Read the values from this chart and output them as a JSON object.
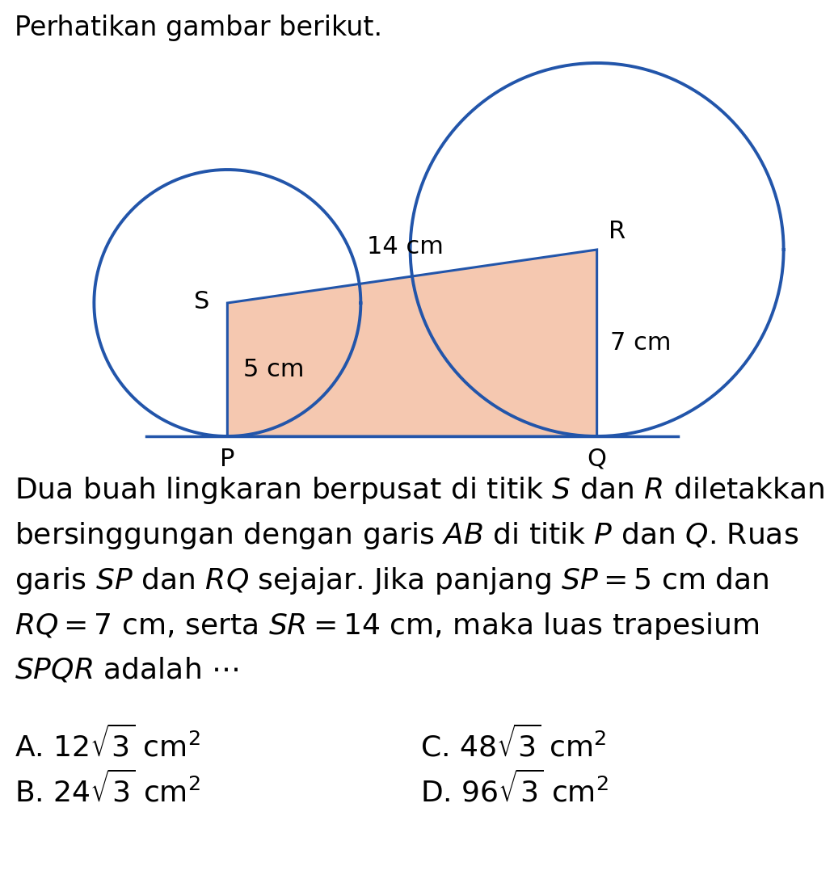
{
  "title": "Perhatikan gambar berikut.",
  "title_fontsize": 24,
  "background_color": "#ffffff",
  "circle_color": "#2255aa",
  "circle_linewidth": 2.8,
  "trapezoid_fill": "#f5c8b0",
  "trapezoid_edge_color": "#2255aa",
  "trapezoid_linewidth": 2.2,
  "line_AB_color": "#2255aa",
  "line_AB_linewidth": 2.5,
  "SP": 5,
  "RQ": 7,
  "SR": 14,
  "label_fontsize": 22,
  "text_fontsize": 26,
  "answer_fontsize": 26,
  "desc_lines": [
    "Dua buah lingkaran berpusat di titik $S$ dan $R$ diletakkan",
    "bersinggungan dengan garis $AB$ di titik $P$ dan $Q$. Ruas",
    "garis $SP$ dan $RQ$ sejajar. Jika panjang $SP=5$ cm dan",
    "$RQ=7$ cm, serta $SR=14$ cm, maka luas trapesium",
    "$SPQR$ adalah $\\cdots$"
  ]
}
